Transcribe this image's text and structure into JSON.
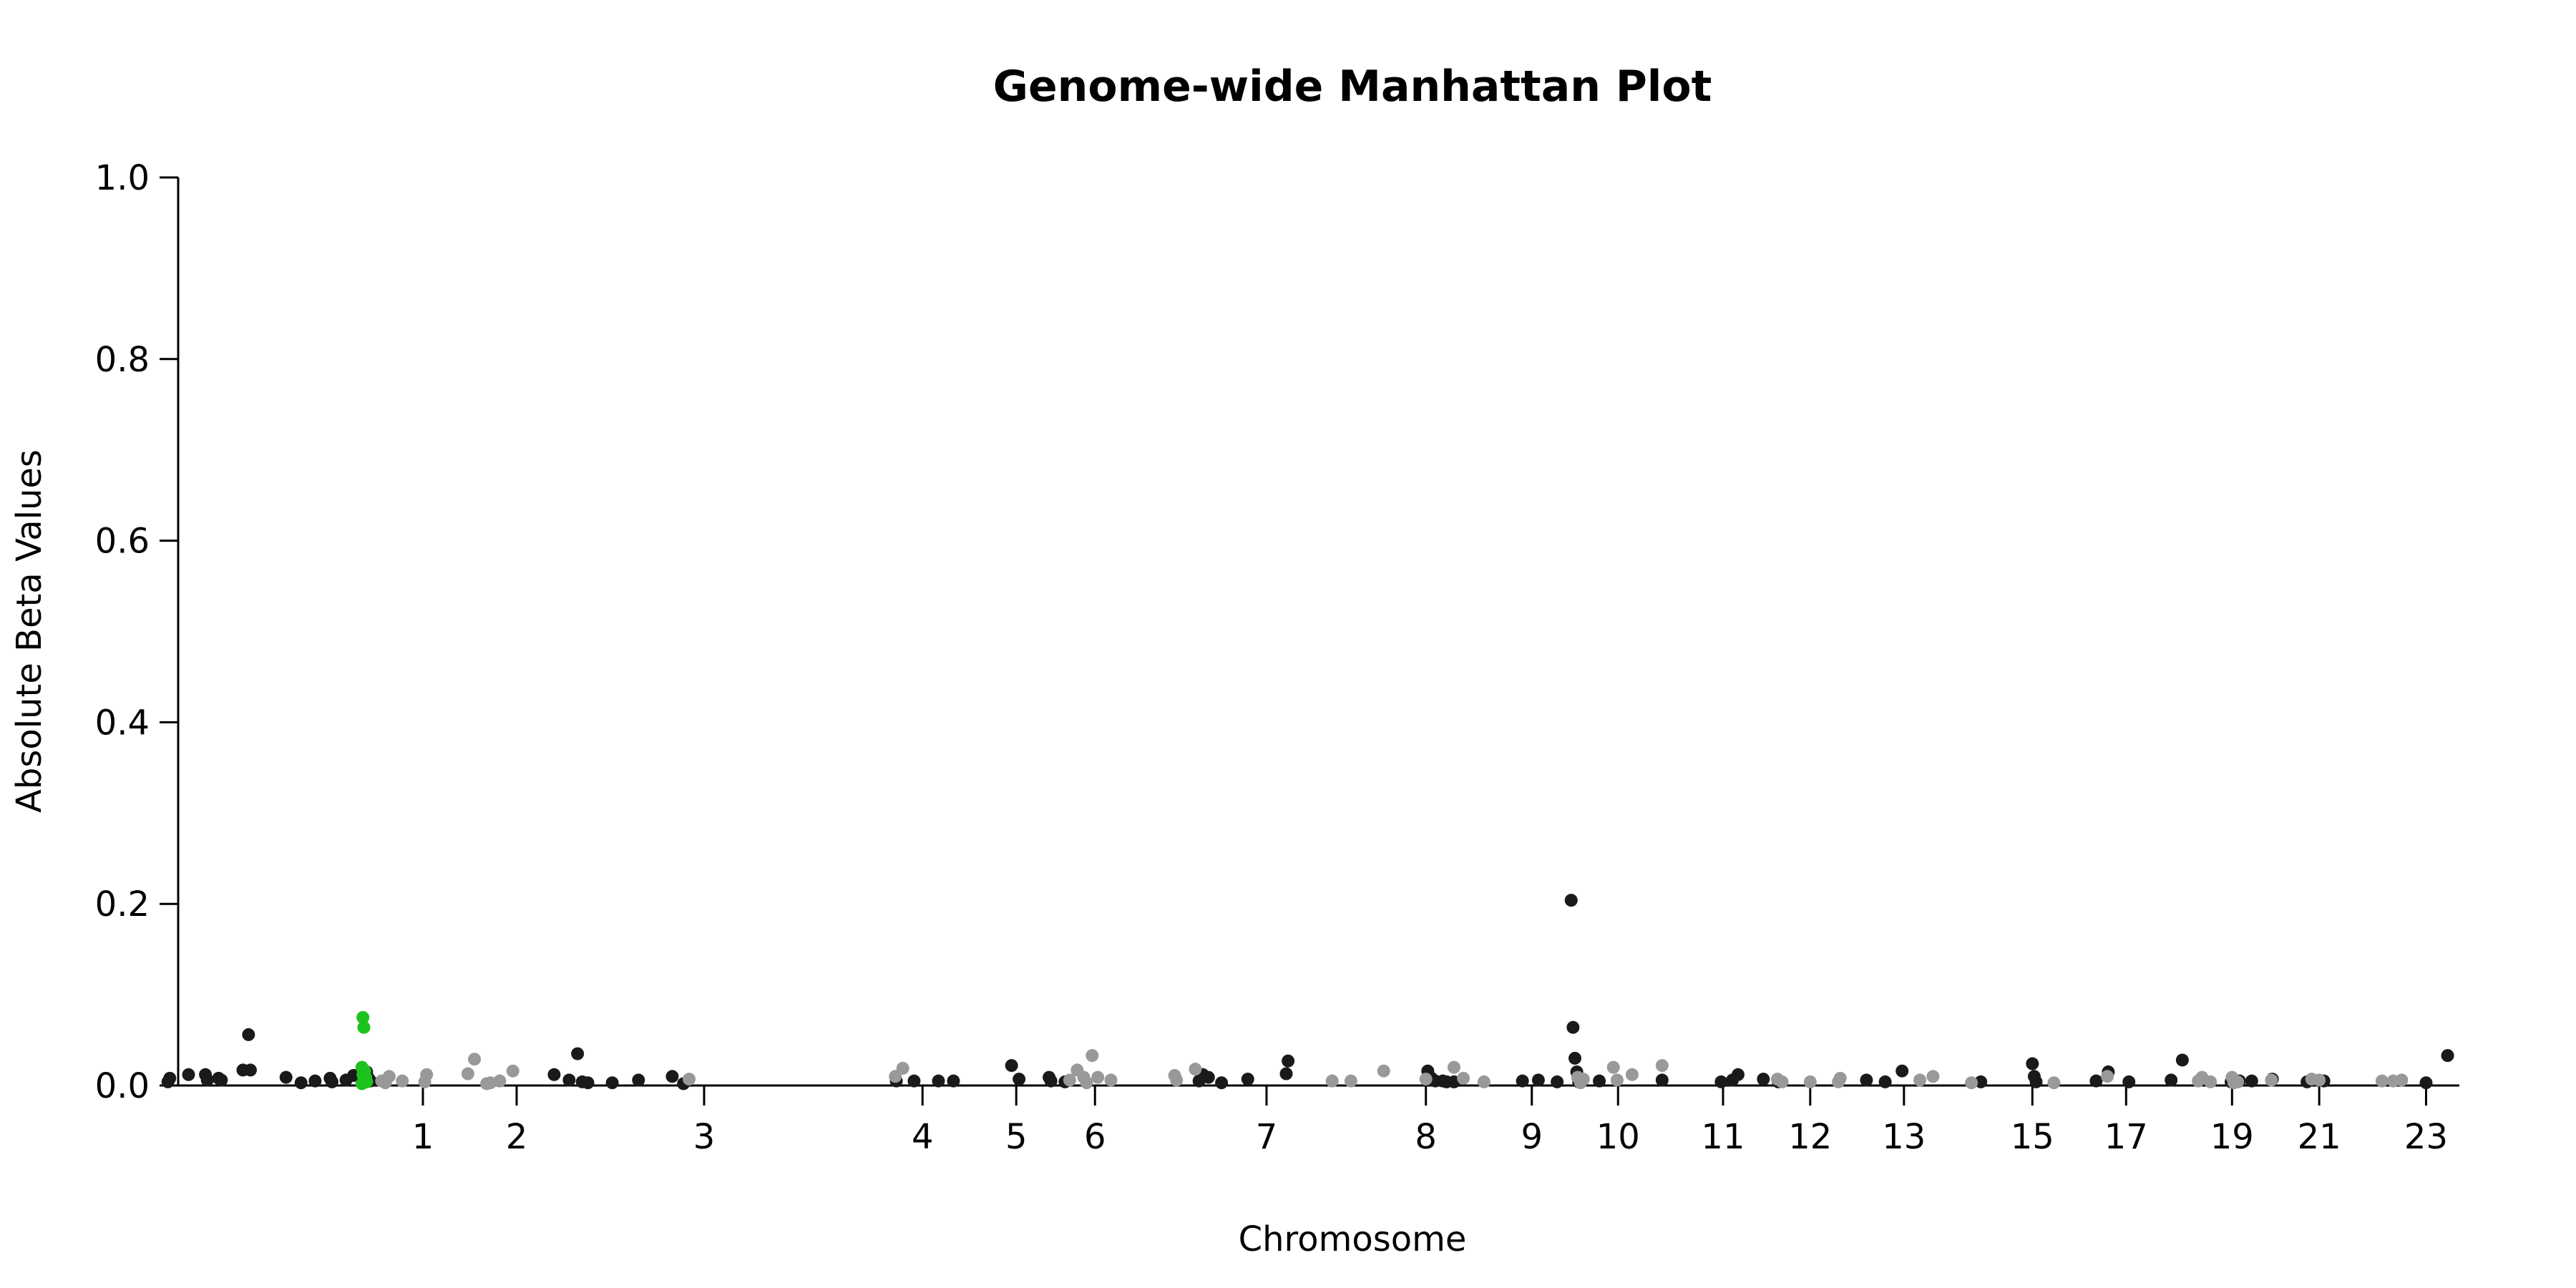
{
  "chart_data": {
    "type": "scatter",
    "title": "Genome-wide Manhattan Plot",
    "xlabel": "Chromosome",
    "ylabel": "Absolute Beta Values",
    "ylim": [
      0,
      1
    ],
    "yticks": [
      "0.0",
      "0.2",
      "0.4",
      "0.6",
      "0.8",
      "1.0"
    ],
    "xticks": [
      {
        "label": "1",
        "x": 1.0
      },
      {
        "label": "2",
        "x": 2.0
      },
      {
        "label": "3",
        "x": 4.0
      },
      {
        "label": "4",
        "x": 6.33
      },
      {
        "label": "5",
        "x": 7.33
      },
      {
        "label": "6",
        "x": 8.17
      },
      {
        "label": "7",
        "x": 10.0
      },
      {
        "label": "8",
        "x": 11.7
      },
      {
        "label": "9",
        "x": 12.83
      },
      {
        "label": "10",
        "x": 13.75
      },
      {
        "label": "11",
        "x": 14.87
      },
      {
        "label": "12",
        "x": 15.8
      },
      {
        "label": "13",
        "x": 16.8
      },
      {
        "label": "15",
        "x": 18.17
      },
      {
        "label": "17",
        "x": 19.17
      },
      {
        "label": "19",
        "x": 20.3
      },
      {
        "label": "21",
        "x": 21.23
      },
      {
        "label": "23",
        "x": 22.37
      }
    ],
    "xrange": [
      -1.6,
      22.6
    ],
    "grid": false,
    "legend": "none",
    "colors": {
      "dark": "#1a1a1a",
      "light": "#999999",
      "highlight": "#1ec21e"
    },
    "series": [
      {
        "color": "dark",
        "points": [
          [
            -1.72,
            0.004
          ],
          [
            -1.7,
            0.008
          ],
          [
            -1.5,
            0.012
          ],
          [
            -1.32,
            0.012
          ],
          [
            -1.3,
            0.006
          ],
          [
            -1.18,
            0.008
          ],
          [
            -1.15,
            0.006
          ],
          [
            -0.92,
            0.017
          ],
          [
            -0.86,
            0.056
          ],
          [
            -0.84,
            0.017
          ],
          [
            -0.46,
            0.009
          ],
          [
            -0.3,
            0.003
          ],
          [
            -0.15,
            0.005
          ],
          [
            0.01,
            0.008
          ],
          [
            0.03,
            0.004
          ],
          [
            0.18,
            0.006
          ],
          [
            0.26,
            0.011
          ],
          [
            0.35,
            0.019
          ],
          [
            0.4,
            0.015
          ],
          [
            0.42,
            0.008
          ],
          [
            0.44,
            0.005
          ],
          [
            2.4,
            0.012
          ],
          [
            2.56,
            0.006
          ],
          [
            2.65,
            0.035
          ],
          [
            2.7,
            0.004
          ],
          [
            2.76,
            0.003
          ],
          [
            3.02,
            0.003
          ],
          [
            3.3,
            0.006
          ],
          [
            3.66,
            0.01
          ],
          [
            3.78,
            0.002
          ],
          [
            6.05,
            0.005
          ],
          [
            6.24,
            0.005
          ],
          [
            6.5,
            0.005
          ],
          [
            6.66,
            0.005
          ],
          [
            7.28,
            0.022
          ],
          [
            7.36,
            0.007
          ],
          [
            7.68,
            0.009
          ],
          [
            7.7,
            0.005
          ],
          [
            7.85,
            0.004
          ],
          [
            9.28,
            0.005
          ],
          [
            9.32,
            0.012
          ],
          [
            9.38,
            0.009
          ],
          [
            9.52,
            0.003
          ],
          [
            9.8,
            0.007
          ],
          [
            10.21,
            0.013
          ],
          [
            10.23,
            0.027
          ],
          [
            11.72,
            0.016
          ],
          [
            11.76,
            0.008
          ],
          [
            11.8,
            0.005
          ],
          [
            11.88,
            0.005
          ],
          [
            11.92,
            0.004
          ],
          [
            12.0,
            0.004
          ],
          [
            12.73,
            0.005
          ],
          [
            12.9,
            0.006
          ],
          [
            13.1,
            0.004
          ],
          [
            13.25,
            0.204
          ],
          [
            13.27,
            0.064
          ],
          [
            13.29,
            0.03
          ],
          [
            13.31,
            0.015
          ],
          [
            13.33,
            0.004
          ],
          [
            13.55,
            0.005
          ],
          [
            14.22,
            0.006
          ],
          [
            14.85,
            0.004
          ],
          [
            14.97,
            0.006
          ],
          [
            15.03,
            0.012
          ],
          [
            15.3,
            0.007
          ],
          [
            15.46,
            0.004
          ],
          [
            16.4,
            0.006
          ],
          [
            16.6,
            0.004
          ],
          [
            16.78,
            0.016
          ],
          [
            17.62,
            0.004
          ],
          [
            18.17,
            0.024
          ],
          [
            18.19,
            0.01
          ],
          [
            18.21,
            0.004
          ],
          [
            18.85,
            0.005
          ],
          [
            18.98,
            0.015
          ],
          [
            19.2,
            0.004
          ],
          [
            19.65,
            0.006
          ],
          [
            19.77,
            0.028
          ],
          [
            20.29,
            0.004
          ],
          [
            20.38,
            0.005
          ],
          [
            20.51,
            0.005
          ],
          [
            20.73,
            0.007
          ],
          [
            21.1,
            0.004
          ],
          [
            21.28,
            0.005
          ],
          [
            22.37,
            0.003
          ],
          [
            22.6,
            0.033
          ]
        ]
      },
      {
        "color": "light",
        "points": [
          [
            0.56,
            0.005
          ],
          [
            0.6,
            0.003
          ],
          [
            0.64,
            0.01
          ],
          [
            0.78,
            0.005
          ],
          [
            1.02,
            0.004
          ],
          [
            1.04,
            0.012
          ],
          [
            1.48,
            0.013
          ],
          [
            1.55,
            0.029
          ],
          [
            1.68,
            0.002
          ],
          [
            1.72,
            0.003
          ],
          [
            1.82,
            0.005
          ],
          [
            1.96,
            0.016
          ],
          [
            3.84,
            0.007
          ],
          [
            6.04,
            0.01
          ],
          [
            6.12,
            0.019
          ],
          [
            7.9,
            0.006
          ],
          [
            7.98,
            0.017
          ],
          [
            8.05,
            0.009
          ],
          [
            8.08,
            0.003
          ],
          [
            8.14,
            0.033
          ],
          [
            8.2,
            0.009
          ],
          [
            8.34,
            0.006
          ],
          [
            9.02,
            0.011
          ],
          [
            9.04,
            0.006
          ],
          [
            9.24,
            0.018
          ],
          [
            10.7,
            0.005
          ],
          [
            10.9,
            0.005
          ],
          [
            11.25,
            0.016
          ],
          [
            11.7,
            0.007
          ],
          [
            12.0,
            0.02
          ],
          [
            12.1,
            0.008
          ],
          [
            12.32,
            0.004
          ],
          [
            13.32,
            0.009
          ],
          [
            13.35,
            0.003
          ],
          [
            13.38,
            0.007
          ],
          [
            13.7,
            0.02
          ],
          [
            13.74,
            0.006
          ],
          [
            13.9,
            0.012
          ],
          [
            14.22,
            0.022
          ],
          [
            15.45,
            0.007
          ],
          [
            15.5,
            0.004
          ],
          [
            15.8,
            0.004
          ],
          [
            16.1,
            0.004
          ],
          [
            16.12,
            0.008
          ],
          [
            16.97,
            0.006
          ],
          [
            17.11,
            0.01
          ],
          [
            17.52,
            0.003
          ],
          [
            18.4,
            0.003
          ],
          [
            18.97,
            0.01
          ],
          [
            19.94,
            0.005
          ],
          [
            19.98,
            0.009
          ],
          [
            20.07,
            0.004
          ],
          [
            20.32,
            0.003
          ],
          [
            20.36,
            0.004
          ],
          [
            20.3,
            0.009
          ],
          [
            20.72,
            0.006
          ],
          [
            21.15,
            0.007
          ],
          [
            21.23,
            0.006
          ],
          [
            21.9,
            0.005
          ],
          [
            22.02,
            0.005
          ],
          [
            22.11,
            0.006
          ]
        ]
      },
      {
        "color": "highlight",
        "points": [
          [
            0.36,
            0.075
          ],
          [
            0.37,
            0.064
          ],
          [
            0.35,
            0.02
          ],
          [
            0.38,
            0.016
          ],
          [
            0.36,
            0.012
          ],
          [
            0.39,
            0.009
          ],
          [
            0.37,
            0.006
          ],
          [
            0.4,
            0.004
          ],
          [
            0.35,
            0.002
          ]
        ]
      }
    ]
  }
}
